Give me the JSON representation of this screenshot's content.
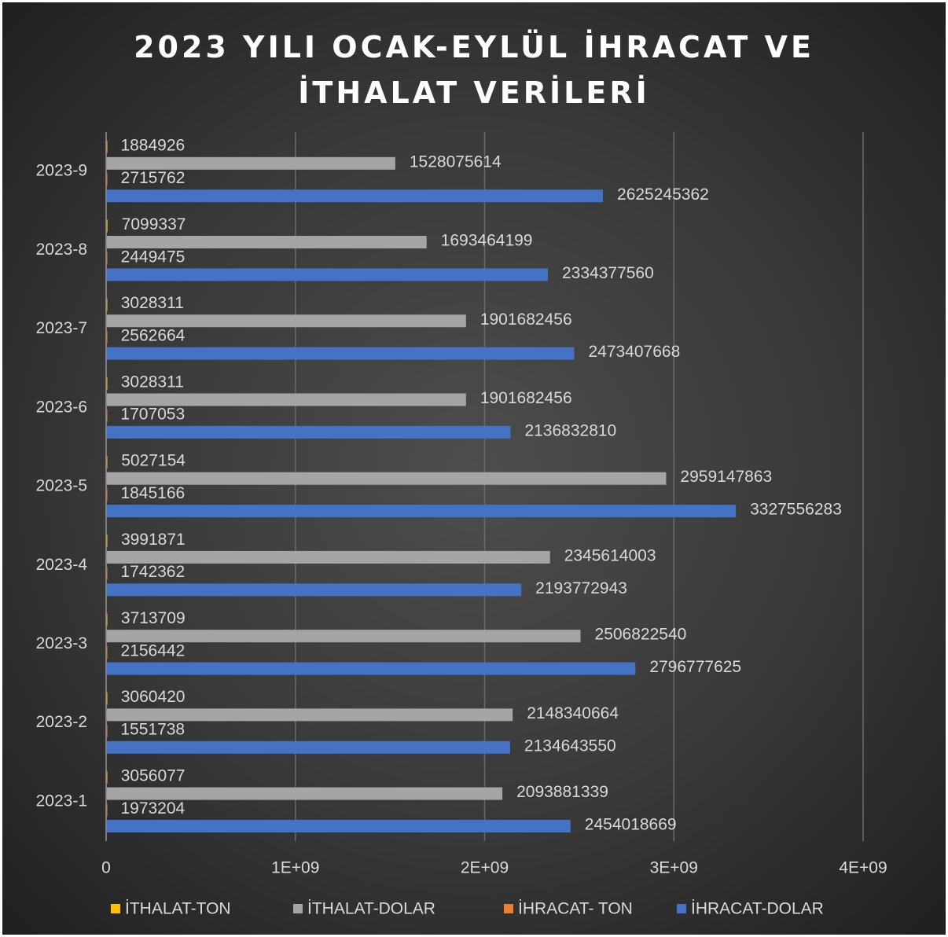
{
  "chart_data": {
    "type": "barh",
    "title": "2023 YILI OCAK-EYLÜL İHRACAT VE İTHALAT VERİLERİ",
    "categories": [
      "2023-1",
      "2023-2",
      "2023-3",
      "2023-4",
      "2023-5",
      "2023-6",
      "2023-7",
      "2023-8",
      "2023-9"
    ],
    "series": [
      {
        "name": "İTHALAT-TON",
        "color": "#ffc000",
        "values": [
          3056077,
          3060420,
          3713709,
          3991871,
          5027154,
          3028311,
          3028311,
          7099337,
          1884926
        ]
      },
      {
        "name": "İTHALAT-DOLAR",
        "color": "#a5a5a5",
        "values": [
          2093881339,
          2148340664,
          2506822540,
          2345614003,
          2959147863,
          1901682456,
          1901682456,
          1693464199,
          1528075614
        ]
      },
      {
        "name": "İHRACAT- TON",
        "color": "#ed7d31",
        "values": [
          1973204,
          1551738,
          2156442,
          1742362,
          1845166,
          1707053,
          2562664,
          2449475,
          2715762
        ]
      },
      {
        "name": "İHRACAT-DOLAR",
        "color": "#4472c4",
        "values": [
          2454018669,
          2134643550,
          2796777625,
          2193772943,
          3327556283,
          2136832810,
          2473407668,
          2334377560,
          2625245362
        ]
      }
    ],
    "xlim": [
      0,
      4000000000
    ],
    "xticks": [
      0,
      {
        "value": 1000000000,
        "label": "1E+09"
      },
      {
        "value": 2000000000,
        "label": "2E+09"
      },
      {
        "value": 3000000000,
        "label": "3E+09"
      },
      {
        "value": 4000000000,
        "label": "4E+09"
      }
    ],
    "grid": true,
    "legend": "bottom"
  }
}
